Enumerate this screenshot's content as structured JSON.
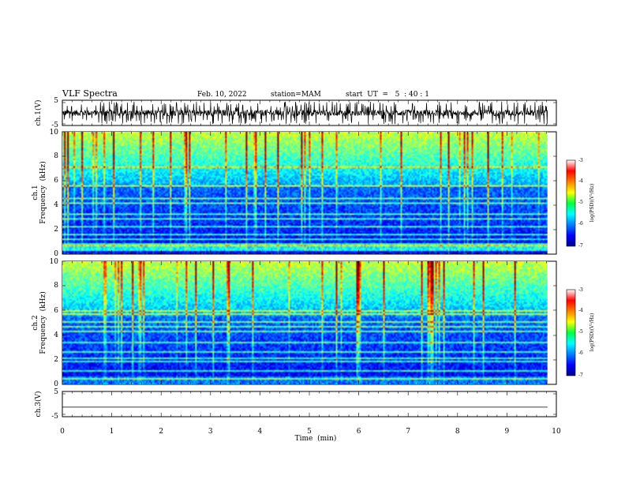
{
  "header": {
    "title": "VLF Spectra",
    "date": "Feb. 10, 2022",
    "station": "station=MAM",
    "start": "start  UT  =   5  : 40 : 1"
  },
  "chart_data": [
    {
      "type": "line",
      "id": "ch1-waveform",
      "ylabel": "ch.1(V)",
      "ylim": [
        -5,
        5
      ],
      "y_ticks": [
        "5",
        "-5"
      ],
      "description_values": {
        "mean_V": 0,
        "spike_max_V": 4.5,
        "spike_min_V": -4
      },
      "xlim": [
        0,
        9.82
      ]
    },
    {
      "type": "heatmap",
      "id": "ch1-spectrogram",
      "ylabel": "ch.1\nFrequency  (kHz)",
      "ylabel_line1": "ch.1",
      "ylabel_line2": "Frequency  (kHz)",
      "xlim": [
        0,
        9.82
      ],
      "ylim": [
        0,
        10
      ],
      "y_ticks": [
        "0",
        "2",
        "4",
        "6",
        "8",
        "10"
      ],
      "colorbar": {
        "label": "log(PSD)(V²/Hz)",
        "range": [
          -7,
          -3
        ],
        "ticks": [
          "-3",
          "-4",
          "-5",
          "-6",
          "-7"
        ]
      },
      "narrowband_lines_kHz": [
        0.3,
        0.6,
        1.2,
        1.6,
        2.2,
        2.8,
        3.2,
        4.2,
        4.6,
        5.6,
        7.2
      ]
    },
    {
      "type": "heatmap",
      "id": "ch2-spectrogram",
      "ylabel_line1": "ch.2",
      "ylabel_line2": "Frequency  (kHz)",
      "xlim": [
        0,
        9.82
      ],
      "ylim": [
        0,
        10
      ],
      "y_ticks": [
        "0",
        "2",
        "4",
        "6",
        "8",
        "10"
      ],
      "colorbar": {
        "label": "log(PSD)(V²/Hz)",
        "range": [
          -7,
          -3
        ],
        "ticks": [
          "-3",
          "-4",
          "-5",
          "-6",
          "-7"
        ]
      },
      "narrowband_lines_kHz": [
        0.4,
        1.0,
        1.8,
        2.1,
        2.6,
        3.4,
        4.3,
        4.7,
        5.1,
        5.7,
        6.0
      ]
    },
    {
      "type": "line",
      "id": "ch3-waveform",
      "ylabel": "ch.3(V)",
      "ylim": [
        -5,
        5
      ],
      "y_ticks": [
        "5",
        "-5"
      ],
      "x": [
        0,
        9.82
      ],
      "values": [
        -1.2,
        -1.2
      ]
    }
  ],
  "x_axis": {
    "label": "Time  (min)",
    "range": [
      0,
      10
    ],
    "ticks": [
      "0",
      "1",
      "2",
      "3",
      "4",
      "5",
      "6",
      "7",
      "8",
      "9",
      "10"
    ]
  }
}
